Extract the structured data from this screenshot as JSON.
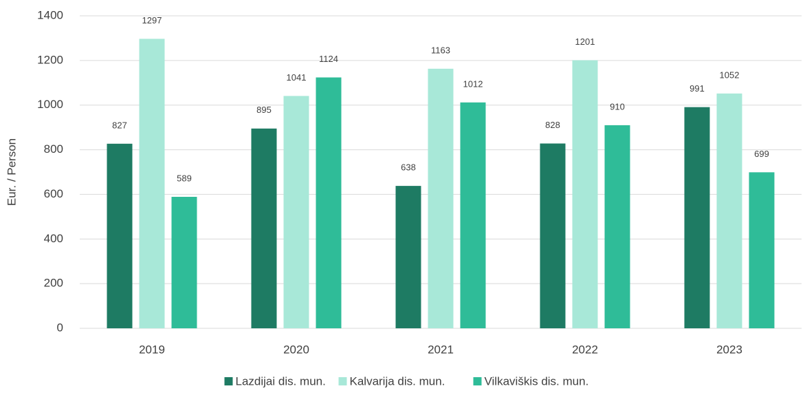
{
  "chart_data": {
    "type": "bar",
    "ylabel": "Eur. / Person",
    "categories": [
      "2019",
      "2020",
      "2021",
      "2022",
      "2023"
    ],
    "series": [
      {
        "name": "Lazdijai dis. mun.",
        "color": "#1e7b63",
        "values": [
          827,
          895,
          638,
          828,
          991
        ]
      },
      {
        "name": "Kalvarija dis. mun.",
        "color": "#a8e8d8",
        "values": [
          1297,
          1041,
          1163,
          1201,
          1052
        ]
      },
      {
        "name": "Vilkaviškis dis. mun.",
        "color": "#2fbc98",
        "values": [
          589,
          1124,
          1012,
          910,
          699
        ]
      }
    ],
    "ylim": [
      0,
      1400
    ],
    "yticks": [
      0,
      200,
      400,
      600,
      800,
      1000,
      1200,
      1400
    ],
    "grid": true
  }
}
